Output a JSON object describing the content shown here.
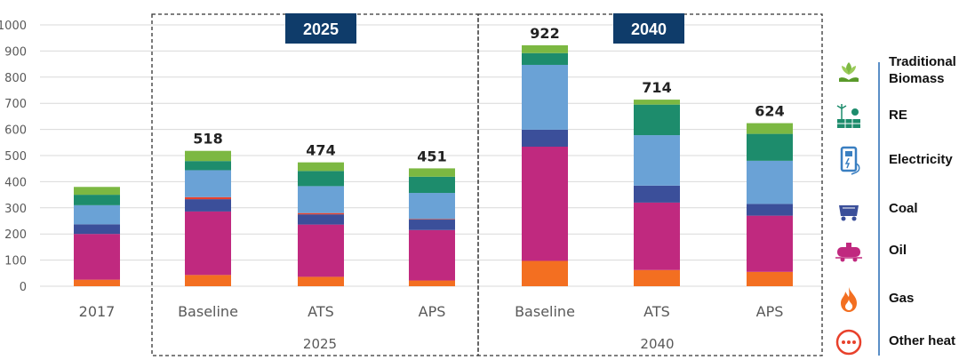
{
  "chart_data": {
    "type": "bar",
    "stacked": true,
    "ylim": [
      0,
      1000
    ],
    "yticks": [
      0,
      100,
      200,
      300,
      400,
      500,
      600,
      700,
      800,
      900,
      1000
    ],
    "grid": true,
    "title": "",
    "xlabel": "",
    "ylabel": "",
    "categories": [
      "2017",
      "Baseline",
      "ATS",
      "APS",
      "Baseline",
      "ATS",
      "APS"
    ],
    "groups": [
      {
        "label": "2025",
        "banner": "2025",
        "categories": [
          1,
          2,
          3
        ]
      },
      {
        "label": "2040",
        "banner": "2040",
        "categories": [
          4,
          5,
          6
        ]
      }
    ],
    "totals": [
      "",
      "518",
      "474",
      "451",
      "922",
      "714",
      "624"
    ],
    "series": [
      {
        "name": "Gas",
        "color": "#f36f21",
        "values": [
          25,
          43,
          36,
          22,
          97,
          62,
          55
        ]
      },
      {
        "name": "Oil",
        "color": "#c0297f",
        "values": [
          175,
          243,
          200,
          193,
          437,
          258,
          215
        ]
      },
      {
        "name": "Coal",
        "color": "#3b4f9a",
        "values": [
          37,
          47,
          39,
          40,
          65,
          65,
          45
        ]
      },
      {
        "name": "Other heat",
        "color": "#e8412c",
        "values": [
          0,
          8,
          5,
          2,
          0,
          0,
          0
        ]
      },
      {
        "name": "Electricity",
        "color": "#6aa2d6",
        "values": [
          73,
          103,
          103,
          100,
          248,
          193,
          165
        ]
      },
      {
        "name": "RE",
        "color": "#1d8c6c",
        "values": [
          40,
          35,
          58,
          62,
          45,
          117,
          103
        ]
      },
      {
        "name": "Traditional Biomass",
        "color": "#7cb842",
        "values": [
          30,
          39,
          33,
          32,
          30,
          19,
          41
        ]
      }
    ],
    "legend_position": "right"
  },
  "legend": [
    {
      "label": "Traditional Biomass",
      "icon": "biomass-icon",
      "color": "#7cb842"
    },
    {
      "label": "RE",
      "icon": "renewable-energy-icon",
      "color": "#1d8c6c"
    },
    {
      "label": "Electricity",
      "icon": "electricity-icon",
      "color": "#3a7fc1"
    },
    {
      "label": "Coal",
      "icon": "coal-icon",
      "color": "#3b4f9a"
    },
    {
      "label": "Oil",
      "icon": "oil-tanker-icon",
      "color": "#c0297f"
    },
    {
      "label": "Gas",
      "icon": "flame-icon",
      "color": "#f36f21"
    },
    {
      "label": "Other heat",
      "icon": "other-heat-icon",
      "color": "#e8412c"
    }
  ]
}
